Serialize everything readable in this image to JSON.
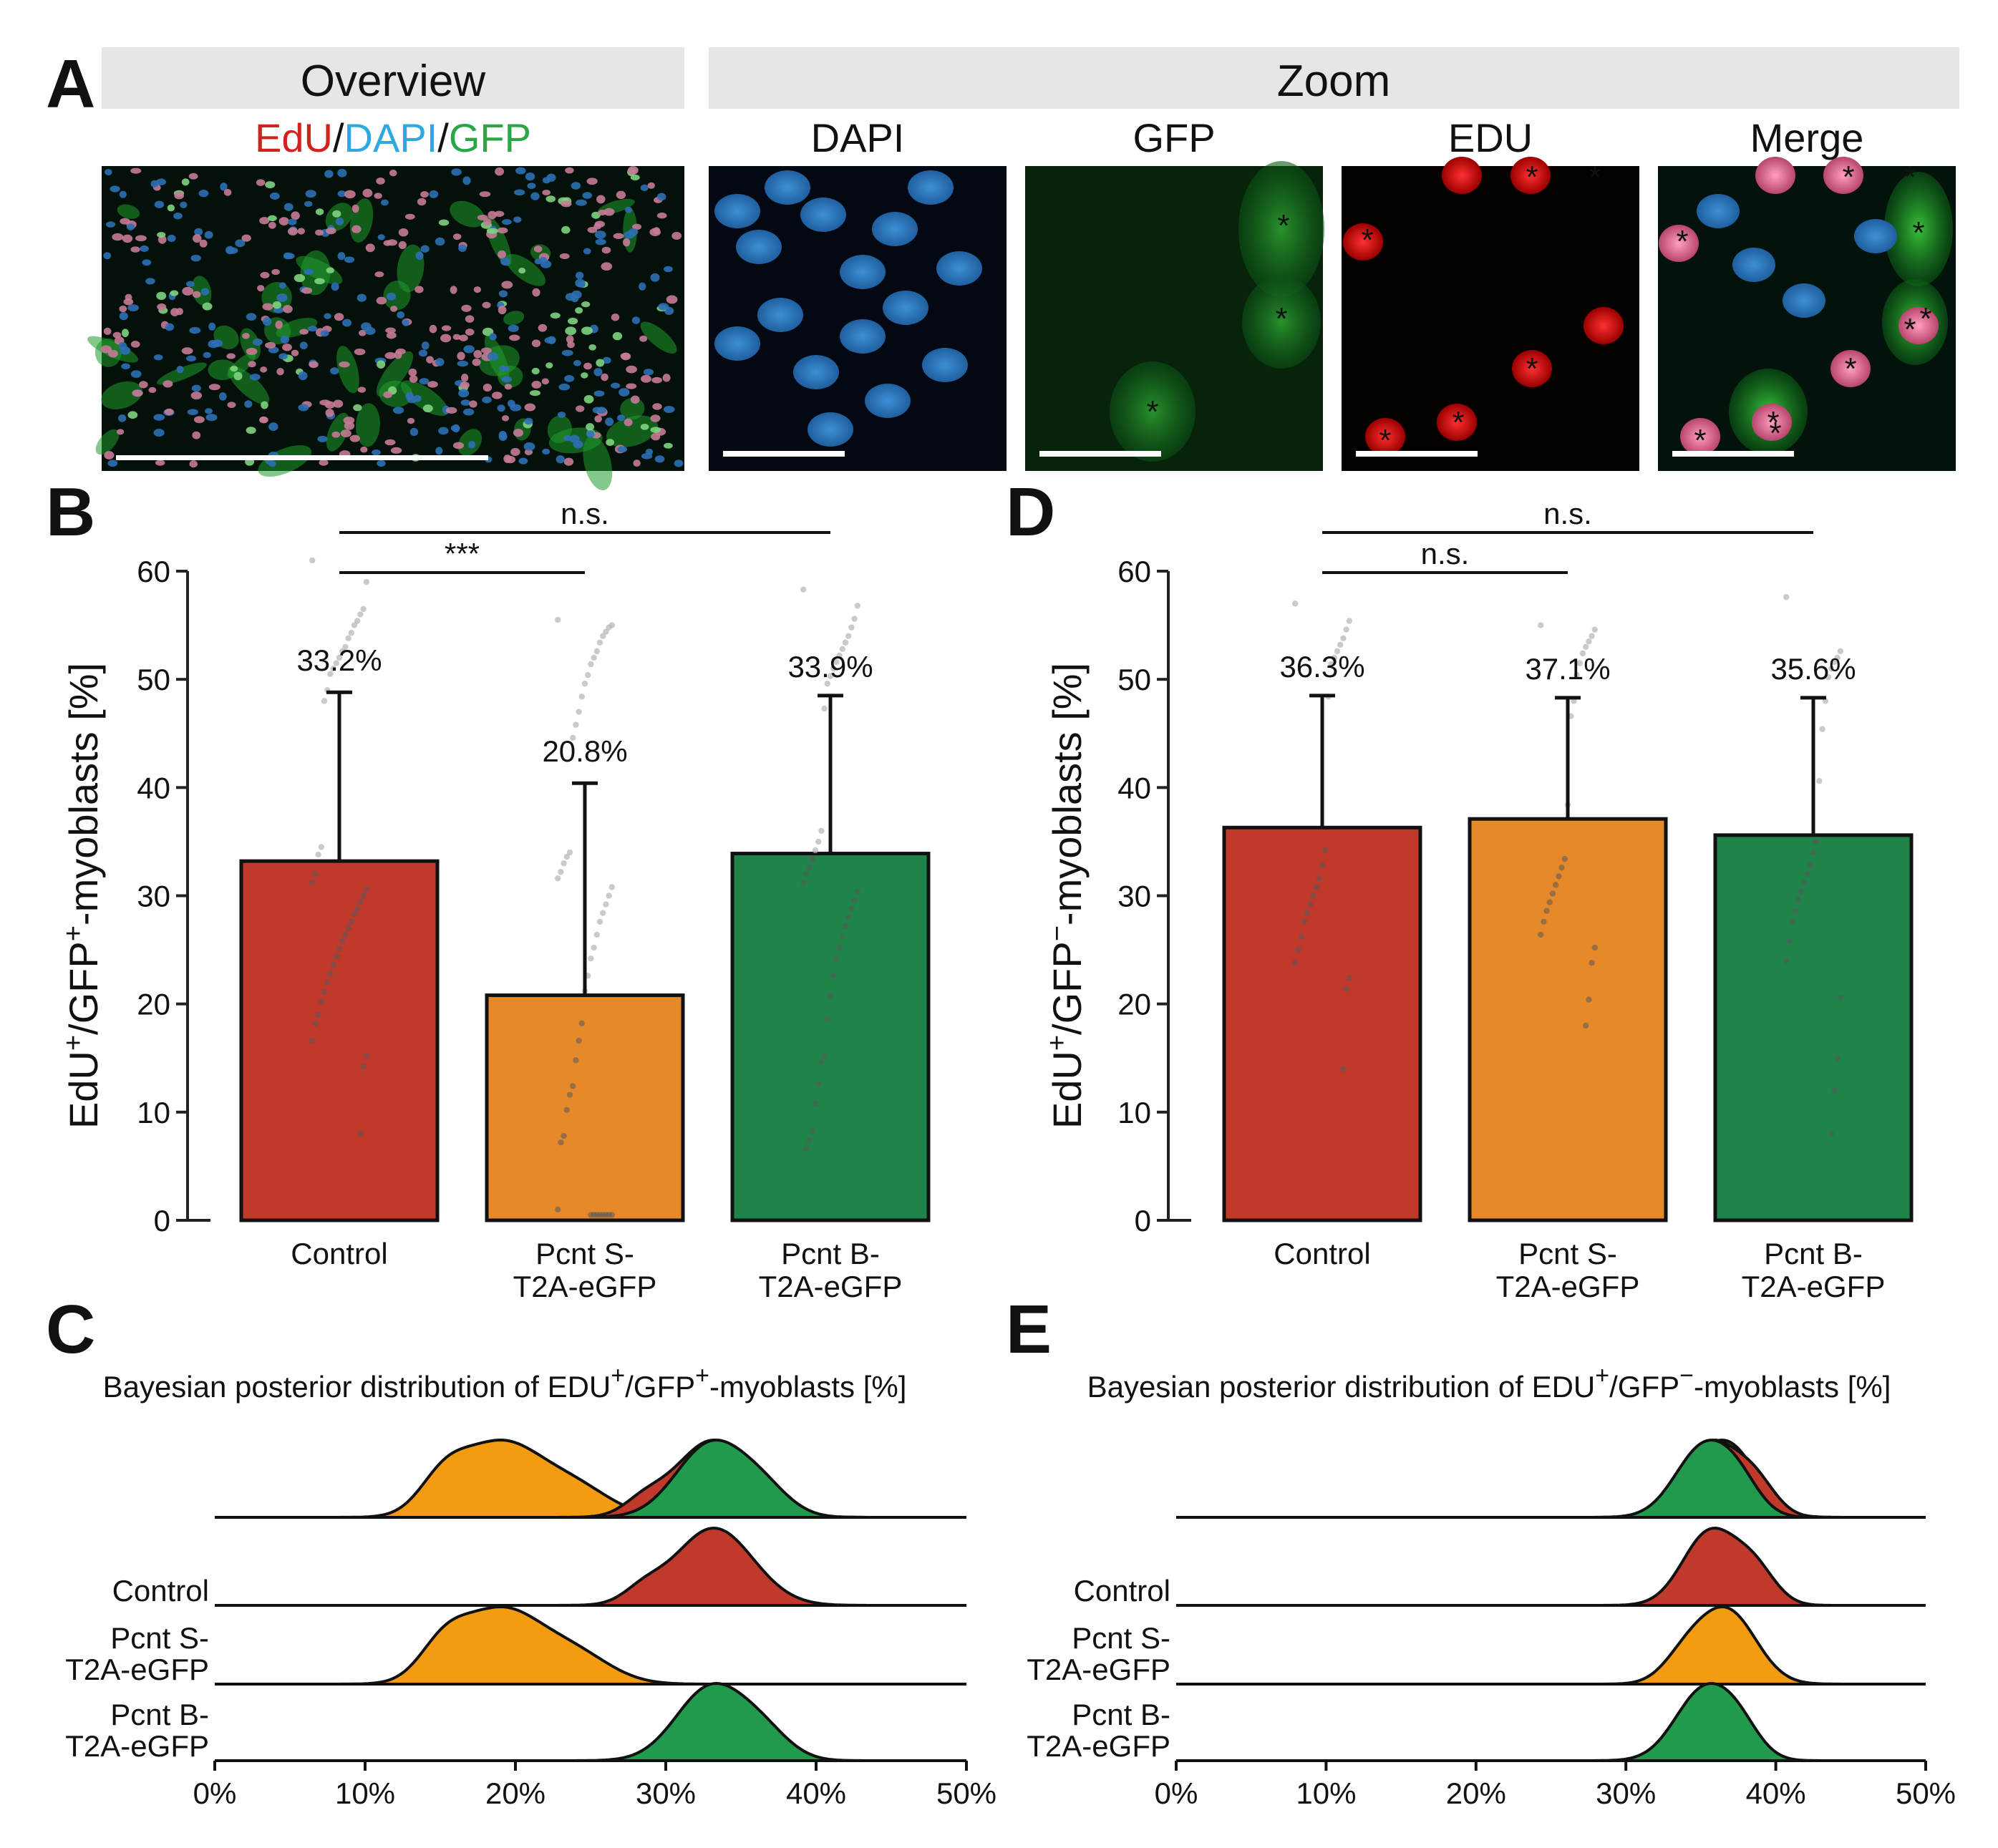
{
  "colors": {
    "control": "#c0392b",
    "pcnt_s": "#e5892a",
    "pcnt_b": "#1e8449",
    "control_ridge": "#c0392b",
    "pcnt_s_ridge": "#f39c12",
    "pcnt_b_ridge": "#219a4e",
    "edu": "#d42020",
    "dapi": "#2ea8e0",
    "gfp": "#27a844",
    "header_bg": "#e6e6e6"
  },
  "panel_a": {
    "letter": "A",
    "overview_header": "Overview",
    "zoom_header": "Zoom",
    "overview_label": [
      {
        "text": "EdU",
        "color": "#d42020"
      },
      {
        "text": "/",
        "color": "#111111"
      },
      {
        "text": "DAPI",
        "color": "#2ea8e0"
      },
      {
        "text": "/",
        "color": "#111111"
      },
      {
        "text": "GFP",
        "color": "#27a844"
      }
    ],
    "zoom_labels": [
      {
        "text": "DAPI",
        "color": "#2ea8e0"
      },
      {
        "text": "GFP",
        "color": "#27a844"
      },
      {
        "text": "EDU",
        "color": "#d42020"
      },
      {
        "text": "Merge",
        "color": "#111111"
      }
    ],
    "marker": "*"
  },
  "chart_data": [
    {
      "panel": "B",
      "type": "bar",
      "ylabel_parts": [
        "EdU",
        "+",
        "/GFP",
        "+",
        "-myoblasts [%]"
      ],
      "ylim": [
        0,
        60
      ],
      "yticks": [
        0,
        10,
        20,
        30,
        40,
        50,
        60
      ],
      "categories": [
        "Control",
        "Pcnt S-\nT2A-eGFP",
        "Pcnt B-\nT2A-eGFP"
      ],
      "values": [
        33.2,
        20.8,
        33.9
      ],
      "value_labels": [
        "33.2%",
        "20.8%",
        "33.9%"
      ],
      "error_upper": [
        48.8,
        40.4,
        48.5
      ],
      "significance": [
        {
          "from": 0,
          "to": 1,
          "label": "***"
        },
        {
          "from": 0,
          "to": 2,
          "label": "n.s."
        }
      ],
      "points": [
        [
          61,
          59,
          56.5,
          56,
          55.4,
          55,
          54.3,
          53.8,
          53,
          52.6,
          52,
          51.5,
          51,
          50.5,
          49,
          48,
          34.5,
          33.8,
          32,
          31.2,
          30.6,
          30,
          29.4,
          28.8,
          28.3,
          27.6,
          27,
          26.4,
          25.8,
          25.1,
          24.4,
          23.6,
          22.8,
          22,
          21.1,
          20.2,
          19,
          18.2,
          16.6,
          15.2,
          14.2,
          8
        ],
        [
          55.5,
          55,
          54.8,
          54.4,
          54,
          53.4,
          52.6,
          52,
          51.4,
          50.4,
          49.6,
          48.4,
          47,
          45.8,
          44.6,
          34,
          33.6,
          33,
          32.2,
          31.6,
          30.8,
          30,
          29.2,
          28.4,
          27.6,
          26.4,
          25.2,
          24.2,
          22.6,
          21.2,
          18.2,
          16.6,
          14.8,
          12.4,
          11.6,
          10.2,
          7.8,
          7.2,
          1,
          0.5,
          0.5,
          0.5,
          0.5,
          0.5,
          0.5,
          0.5,
          0.5
        ],
        [
          58.3,
          56.8,
          55.6,
          54.8,
          54,
          53.4,
          52.8,
          52.2,
          51.6,
          51,
          50.3,
          49.6,
          47.3,
          36,
          35,
          34.2,
          33.4,
          32.6,
          32,
          31.2,
          30.4,
          29.6,
          28.8,
          28,
          27.2,
          26.2,
          25.2,
          24.2,
          22.6,
          20.8,
          18.6,
          15.2,
          14.6,
          12.6,
          10.8,
          8.2,
          7.4,
          6.6
        ]
      ]
    },
    {
      "panel": "D",
      "type": "bar",
      "ylabel_parts": [
        "EdU",
        "+",
        "/GFP",
        "−",
        "-myoblasts [%]"
      ],
      "ylim": [
        0,
        60
      ],
      "yticks": [
        0,
        10,
        20,
        30,
        40,
        50,
        60
      ],
      "categories": [
        "Control",
        "Pcnt S-\nT2A-eGFP",
        "Pcnt B-\nT2A-eGFP"
      ],
      "values": [
        36.3,
        37.1,
        35.6
      ],
      "value_labels": [
        "36.3%",
        "37.1%",
        "35.6%"
      ],
      "error_upper": [
        48.5,
        48.3,
        48.3
      ],
      "significance": [
        {
          "from": 0,
          "to": 1,
          "label": "n.s."
        },
        {
          "from": 0,
          "to": 2,
          "label": "n.s."
        }
      ],
      "points": [
        [
          57,
          55.4,
          54.6,
          53.8,
          53.2,
          52.6,
          52,
          51.4,
          48.4,
          34.2,
          32.8,
          31.6,
          30.8,
          30,
          29.2,
          28.4,
          27.6,
          26.2,
          25,
          23.8,
          22.4,
          21.4,
          14
        ],
        [
          55,
          54.6,
          54,
          53.5,
          53,
          52.4,
          51.5,
          50.4,
          48,
          46.6,
          38.4,
          33.4,
          32.6,
          31.8,
          31,
          30.2,
          29.4,
          28.6,
          27.6,
          26.4,
          25.2,
          23.8,
          20.4,
          18
        ],
        [
          57.6,
          52.6,
          52,
          51.6,
          51,
          50.2,
          48,
          45.4,
          40.6,
          35,
          34,
          32.8,
          32,
          31.2,
          30.4,
          29.6,
          28.6,
          27.6,
          25.8,
          24,
          20.6,
          15,
          12,
          8
        ]
      ]
    },
    {
      "panel": "C",
      "type": "area",
      "title_parts": [
        "Bayesian posterior distribution of EDU",
        "+",
        "/GFP",
        "+",
        "-myoblasts [%]"
      ],
      "xlim": [
        0,
        50
      ],
      "xticks": [
        0,
        10,
        20,
        30,
        40,
        50
      ],
      "xtick_labels": [
        "0%",
        "10%",
        "20%",
        "30%",
        "40%",
        "50%"
      ],
      "row_labels": [
        "Control",
        "Pcnt S-\nT2A-eGFP",
        "Pcnt B-\nT2A-eGFP"
      ],
      "series": [
        {
          "name": "Control",
          "peaks": [
            {
              "mu": 33.2,
              "sd": 2.6,
              "w": 1.0
            },
            {
              "mu": 28.5,
              "sd": 1.3,
              "w": 0.16
            }
          ]
        },
        {
          "name": "Pcnt S-T2A-eGFP",
          "peaks": [
            {
              "mu": 19.0,
              "sd": 2.7,
              "w": 1.0
            },
            {
              "mu": 15.2,
              "sd": 1.6,
              "w": 0.42
            },
            {
              "mu": 24.0,
              "sd": 2.4,
              "w": 0.38
            }
          ]
        },
        {
          "name": "Pcnt B-T2A-eGFP",
          "peaks": [
            {
              "mu": 33.0,
              "sd": 2.3,
              "w": 1.0
            },
            {
              "mu": 36.5,
              "sd": 1.8,
              "w": 0.32
            }
          ]
        }
      ]
    },
    {
      "panel": "E",
      "type": "area",
      "title_parts": [
        "Bayesian posterior distribution of EDU",
        "+",
        "/GFP",
        "−",
        "-myoblasts [%]"
      ],
      "xlim": [
        0,
        50
      ],
      "xticks": [
        0,
        10,
        20,
        30,
        40,
        50
      ],
      "xtick_labels": [
        "0%",
        "10%",
        "20%",
        "30%",
        "40%",
        "50%"
      ],
      "row_labels": [
        "Control",
        "Pcnt S-\nT2A-eGFP",
        "Pcnt B-\nT2A-eGFP"
      ],
      "series": [
        {
          "name": "Control",
          "peaks": [
            {
              "mu": 35.6,
              "sd": 1.8,
              "w": 1.0
            },
            {
              "mu": 38.6,
              "sd": 1.4,
              "w": 0.45
            }
          ]
        },
        {
          "name": "Pcnt S-T2A-eGFP",
          "peaks": [
            {
              "mu": 36.8,
              "sd": 1.9,
              "w": 1.0
            },
            {
              "mu": 34.0,
              "sd": 1.5,
              "w": 0.35
            }
          ]
        },
        {
          "name": "Pcnt B-T2A-eGFP",
          "peaks": [
            {
              "mu": 35.2,
              "sd": 1.9,
              "w": 1.0
            },
            {
              "mu": 37.6,
              "sd": 1.4,
              "w": 0.35
            }
          ]
        }
      ]
    }
  ]
}
